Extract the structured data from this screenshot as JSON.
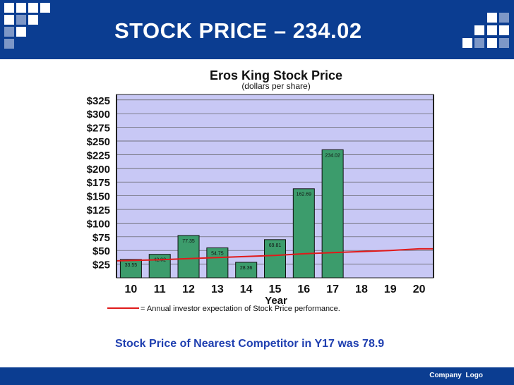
{
  "slide": {
    "title": "STOCK PRICE – 234.02",
    "caption": "Stock Price of Nearest Competitor in Y17 was 78.9",
    "footer_logo": "Company  Logo"
  },
  "colors": {
    "header": "#0b3d91",
    "plot_background": "#c8c8f5",
    "bar": "#3c9c6c",
    "expectation_line": "#e01a1a",
    "caption": "#1f3fb0"
  },
  "chart_data": {
    "type": "bar",
    "title": "Eros King Stock Price",
    "subtitle": "(dollars per share)",
    "xlabel": "Year",
    "ylabel": "",
    "categories": [
      "10",
      "11",
      "12",
      "13",
      "14",
      "15",
      "16",
      "17",
      "18",
      "19",
      "20"
    ],
    "values": [
      33.55,
      42.92,
      77.35,
      54.75,
      28.36,
      69.81,
      162.69,
      234.02,
      null,
      null,
      null
    ],
    "data_labels": [
      "33.55",
      "42.92",
      "77.35",
      "54.75",
      "28.36",
      "69.81",
      "162.69",
      "234.02",
      "",
      "",
      ""
    ],
    "ylim": [
      0,
      335
    ],
    "yticks": [
      25,
      50,
      75,
      100,
      125,
      150,
      175,
      200,
      225,
      250,
      275,
      300,
      325
    ],
    "ytick_labels": [
      "$25",
      "$50",
      "$75",
      "$100",
      "$125",
      "$150",
      "$175",
      "$200",
      "$225",
      "$250",
      "$275",
      "$300",
      "$325"
    ],
    "expectation_line": {
      "label": "= Annual investor expectation of Stock Price performance.",
      "values": [
        31,
        33,
        35,
        37,
        39,
        41,
        44,
        46,
        48,
        50,
        53
      ]
    },
    "grid": true
  }
}
